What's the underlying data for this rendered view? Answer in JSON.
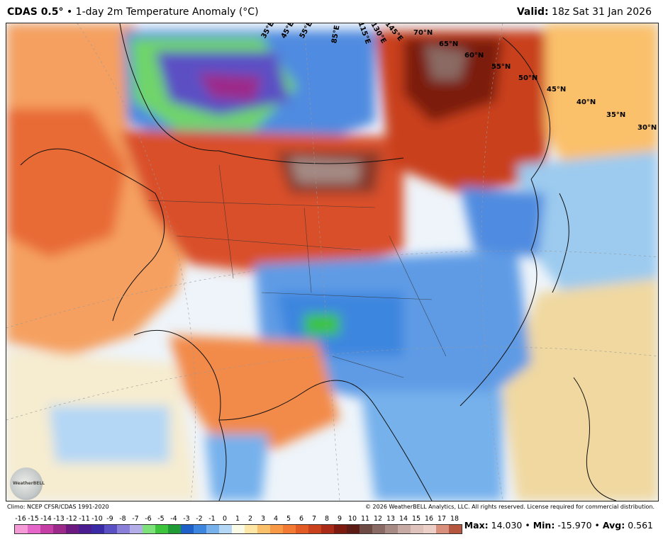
{
  "header": {
    "product": "CDAS 0.5",
    "degree_mark": "°",
    "separator": " • ",
    "description": "1-day 2m Temperature Anomaly (",
    "unit": "°C",
    "description_end": ")",
    "valid_label": "Valid:",
    "valid_time": "18z Sat 31 Jan 2026"
  },
  "map": {
    "lat_labels": [
      "70°N",
      "65°N",
      "60°N",
      "55°N",
      "50°N",
      "45°N",
      "40°N",
      "35°N",
      "30°N"
    ],
    "lon_labels": [
      "35°E",
      "45°E",
      "55°E",
      "85°E",
      "115°E",
      "130°E",
      "145°E"
    ],
    "logo_text": "WeatherBELL"
  },
  "footer": {
    "climo": "Climo: NCEP CFSR/CDAS 1991-2020",
    "copyright": "© 2026 WeatherBELL Analytics, LLC. All rights reserved. License required for commercial distribution."
  },
  "colorbar": {
    "labels": [
      "-16",
      "-15",
      "-14",
      "-13",
      "-12",
      "-11",
      "-10",
      "-9",
      "-8",
      "-7",
      "-6",
      "-5",
      "-4",
      "-3",
      "-2",
      "-1",
      "0",
      "1",
      "2",
      "3",
      "4",
      "5",
      "6",
      "7",
      "8",
      "9",
      "10",
      "11",
      "12",
      "13",
      "14",
      "15",
      "16",
      "17",
      "18"
    ],
    "colors": [
      "#f49ad6",
      "#e565c8",
      "#c43ea5",
      "#9c2a8a",
      "#6c1a7f",
      "#4b1c8f",
      "#3a2aa6",
      "#5b4fc4",
      "#8a7fd8",
      "#b3aee8",
      "#7ee27b",
      "#3cc43d",
      "#1f9a35",
      "#1f5fc8",
      "#3c86df",
      "#76b1ec",
      "#b4d7f5",
      "#fafbe6",
      "#fde6a6",
      "#fbc06a",
      "#f89a45",
      "#f27a32",
      "#e25a24",
      "#c9401d",
      "#a92a16",
      "#7c1a10",
      "#5b1a14",
      "#6e4a44",
      "#8a6a64",
      "#a88a84",
      "#c8aaa4",
      "#e0c2bc",
      "#ecd0c8",
      "#d88f7c",
      "#b5563f"
    ]
  },
  "stats": {
    "max_label": "Max:",
    "max_value": "14.030",
    "min_label": "Min:",
    "min_value": "-15.970",
    "avg_label": "Avg:",
    "avg_value": "0.561",
    "sep": " • "
  }
}
